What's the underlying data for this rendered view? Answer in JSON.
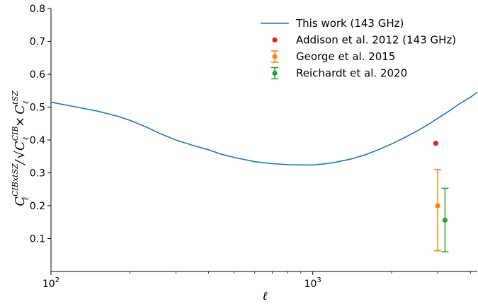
{
  "chart_data": {
    "type": "line",
    "xscale": "log",
    "xlim": [
      100,
      4250
    ],
    "ylim": [
      0.0,
      0.8
    ],
    "grid": false,
    "legend_position": "top-right",
    "xlabel": "ℓ",
    "ylabel": {
      "main": "C",
      "main_sub": "ℓ",
      "main_sup": "CIBxtSZ",
      "slash": "/",
      "term1": "C",
      "term1_sub": "ℓ",
      "term1_sup": "CIB",
      "times": "×",
      "term2": "C",
      "term2_sub": "ℓ",
      "term2_sup": "tSZ"
    },
    "xticks": [
      {
        "value": 100,
        "base": "10",
        "exp": "2"
      },
      {
        "value": 1000,
        "base": "10",
        "exp": "3"
      }
    ],
    "yticks": [
      {
        "value": 0.1,
        "label": "0.1"
      },
      {
        "value": 0.2,
        "label": "0.2"
      },
      {
        "value": 0.3,
        "label": "0.3"
      },
      {
        "value": 0.4,
        "label": "0.4"
      },
      {
        "value": 0.5,
        "label": "0.5"
      },
      {
        "value": 0.6,
        "label": "0.6"
      },
      {
        "value": 0.7,
        "label": "0.7"
      },
      {
        "value": 0.8,
        "label": "0.8"
      }
    ],
    "series": [
      {
        "name": "This work (143 GHz)",
        "kind": "line",
        "color": "#1f77b4",
        "x": [
          100,
          120,
          150,
          180,
          200,
          230,
          260,
          300,
          350,
          400,
          450,
          500,
          600,
          700,
          800,
          900,
          1000,
          1100,
          1200,
          1400,
          1600,
          1800,
          2000,
          2200,
          2500,
          2800,
          3000,
          3300,
          3600,
          4000,
          4250
        ],
        "y": [
          0.515,
          0.503,
          0.488,
          0.472,
          0.46,
          0.44,
          0.42,
          0.4,
          0.383,
          0.37,
          0.356,
          0.347,
          0.334,
          0.328,
          0.325,
          0.324,
          0.324,
          0.327,
          0.331,
          0.342,
          0.356,
          0.372,
          0.388,
          0.404,
          0.427,
          0.45,
          0.466,
          0.487,
          0.508,
          0.53,
          0.545
        ]
      },
      {
        "name": "Addison et al. 2012 (143 GHz)",
        "kind": "points",
        "color": "#d62728",
        "points": [
          {
            "x": 2950,
            "y": 0.39
          }
        ]
      },
      {
        "name": "George et al. 2015",
        "kind": "errorbar",
        "color": "#ff7f0e",
        "points": [
          {
            "x": 3000,
            "y": 0.2,
            "ylow": 0.063,
            "yhigh": 0.31
          }
        ]
      },
      {
        "name": "Reichardt et al. 2020",
        "kind": "errorbar",
        "color": "#2ca02c",
        "points": [
          {
            "x": 3200,
            "y": 0.156,
            "ylow": 0.06,
            "yhigh": 0.253
          }
        ]
      }
    ]
  }
}
